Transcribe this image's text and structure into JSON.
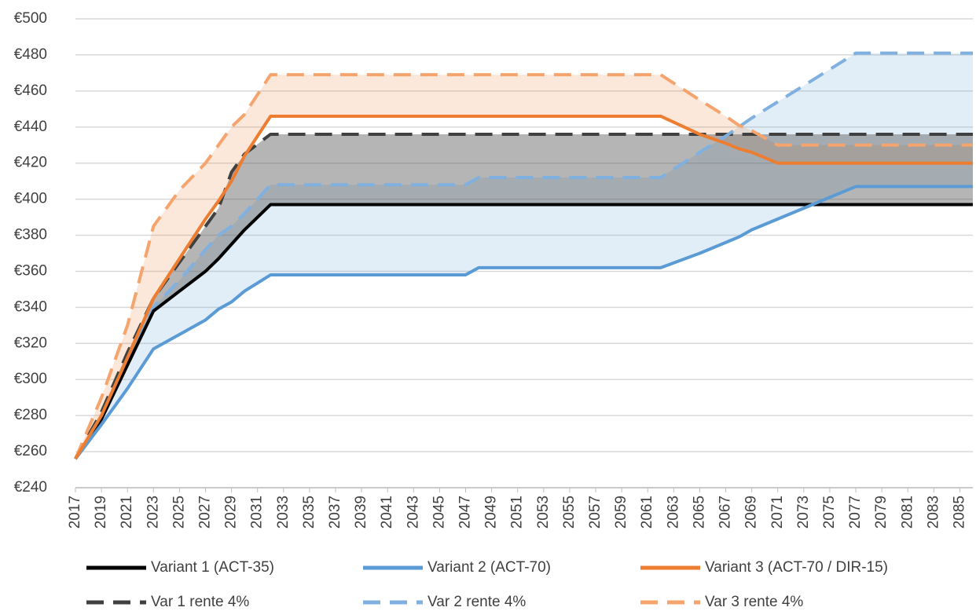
{
  "chart_data": {
    "type": "line",
    "x": [
      2017,
      2019,
      2021,
      2023,
      2025,
      2027,
      2028,
      2029,
      2030,
      2032,
      2047,
      2048,
      2062,
      2065,
      2067,
      2068,
      2069,
      2071,
      2073,
      2075,
      2077,
      2086
    ],
    "series": [
      {
        "name": "Variant 1 (ACT-35)",
        "color": "#000000",
        "dash": false,
        "values": [
          256,
          278,
          308,
          338,
          349,
          360,
          367,
          375,
          383,
          397,
          397,
          397,
          397,
          397,
          397,
          397,
          397,
          397,
          397,
          397,
          397,
          397
        ]
      },
      {
        "name": "Variant 2 (ACT-70)",
        "color": "#5b9bd5",
        "dash": false,
        "values": [
          256,
          275,
          295,
          317,
          325,
          333,
          339,
          343,
          349,
          358,
          358,
          362,
          362,
          370,
          376,
          379,
          383,
          389,
          395,
          401,
          407,
          407
        ]
      },
      {
        "name": "Variant 3 (ACT-70 / DIR-15)",
        "color": "#ed7d31",
        "dash": false,
        "values": [
          256,
          280,
          312,
          345,
          367,
          389,
          399,
          410,
          424,
          446,
          446,
          446,
          446,
          436,
          431,
          428,
          426,
          420,
          420,
          420,
          420,
          420
        ]
      },
      {
        "name": "Var 1 rente 4%",
        "color": "#404040",
        "dash": true,
        "values": [
          256,
          282,
          315,
          345,
          365,
          385,
          395,
          415,
          425,
          436,
          436,
          436,
          436,
          436,
          436,
          436,
          436,
          436,
          436,
          436,
          436,
          436
        ]
      },
      {
        "name": "Var 2 rente 4%",
        "color": "#7fb0e0",
        "dash": true,
        "values": [
          256,
          280,
          310,
          340,
          355,
          372,
          380,
          385,
          392,
          408,
          408,
          412,
          412,
          426,
          435,
          440,
          445,
          454,
          463,
          472,
          481,
          481
        ]
      },
      {
        "name": "Var 3 rente 4%",
        "color": "#f4a46c",
        "dash": true,
        "values": [
          256,
          290,
          330,
          385,
          405,
          420,
          430,
          440,
          447,
          469,
          469,
          469,
          469,
          455,
          446,
          441,
          438,
          430,
          430,
          430,
          430,
          430
        ]
      }
    ],
    "bands": [
      {
        "series": [
          1,
          4
        ],
        "color": "rgba(91,155,213,0.18)"
      },
      {
        "series": [
          2,
          5
        ],
        "color": "rgba(237,125,49,0.18)"
      },
      {
        "series": [
          0,
          3
        ],
        "color": "rgba(90,90,90,0.45)"
      }
    ],
    "xlim": [
      2017,
      2086
    ],
    "xticks": [
      2017,
      2019,
      2021,
      2023,
      2025,
      2027,
      2029,
      2031,
      2033,
      2035,
      2037,
      2039,
      2041,
      2043,
      2045,
      2047,
      2049,
      2051,
      2053,
      2055,
      2057,
      2059,
      2061,
      2063,
      2065,
      2067,
      2069,
      2071,
      2073,
      2075,
      2077,
      2079,
      2081,
      2083,
      2085
    ],
    "ylim": [
      240,
      500
    ],
    "yticks": [
      {
        "value": 240,
        "label": "€240"
      },
      {
        "value": 260,
        "label": "€260"
      },
      {
        "value": 280,
        "label": "€280"
      },
      {
        "value": 300,
        "label": "€300"
      },
      {
        "value": 320,
        "label": "€320"
      },
      {
        "value": 340,
        "label": "€340"
      },
      {
        "value": 360,
        "label": "€360"
      },
      {
        "value": 380,
        "label": "€380"
      },
      {
        "value": 400,
        "label": "€400"
      },
      {
        "value": 420,
        "label": "€420"
      },
      {
        "value": 440,
        "label": "€440"
      },
      {
        "value": 460,
        "label": "€460"
      },
      {
        "value": 480,
        "label": "€480"
      },
      {
        "value": 500,
        "label": "€500"
      }
    ],
    "grid": true,
    "legend": "bottom"
  }
}
